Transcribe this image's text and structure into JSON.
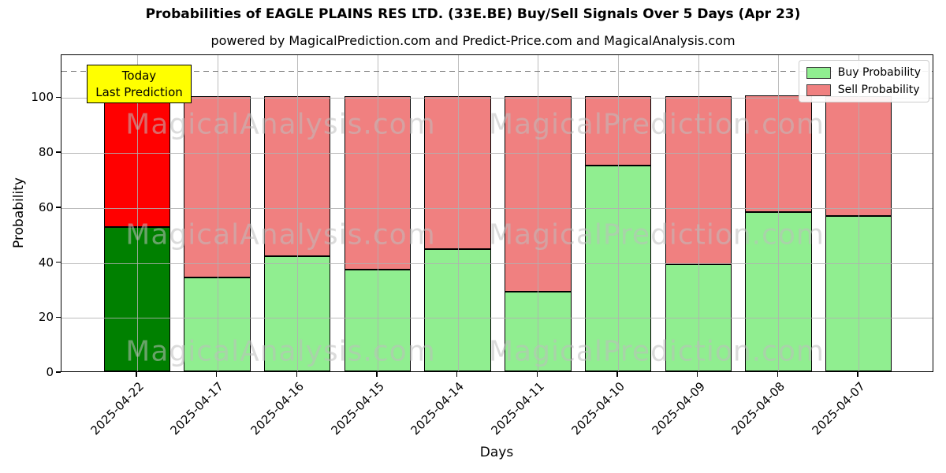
{
  "title": "Probabilities of EAGLE PLAINS RES LTD. (33E.BE) Buy/Sell Signals Over 5 Days (Apr 23)",
  "subtitle": "powered by MagicalPrediction.com and Predict-Price.com and MagicalAnalysis.com",
  "annotation": {
    "line1": "Today",
    "line2": "Last Prediction",
    "bg_color": "#ffff00"
  },
  "watermarks": {
    "left_text": "MagicalAnalysis.com",
    "right_text": "MagicalPrediction.com"
  },
  "legend": [
    {
      "label": "Buy Probability",
      "color": "#90ee90"
    },
    {
      "label": "Sell Probability",
      "color": "#f08080"
    }
  ],
  "chart_data": {
    "type": "bar",
    "stacked": true,
    "title": "Probabilities of EAGLE PLAINS RES LTD. (33E.BE) Buy/Sell Signals Over 5 Days (Apr 23)",
    "xlabel": "Days",
    "ylabel": "Probability",
    "categories": [
      "2025-04-22",
      "2025-04-17",
      "2025-04-16",
      "2025-04-15",
      "2025-04-14",
      "2025-04-11",
      "2025-04-10",
      "2025-04-09",
      "2025-04-08",
      "2025-04-07"
    ],
    "series": [
      {
        "name": "Buy Probability",
        "values": [
          52.5,
          34,
          42,
          37,
          44.5,
          29,
          75,
          39,
          58,
          56.5
        ],
        "colors": [
          "#008000",
          "#90ee90",
          "#90ee90",
          "#90ee90",
          "#90ee90",
          "#90ee90",
          "#90ee90",
          "#90ee90",
          "#90ee90",
          "#90ee90"
        ]
      },
      {
        "name": "Sell Probability",
        "values": [
          47.5,
          66,
          58,
          63,
          55.5,
          71,
          25,
          61,
          42.5,
          43.5
        ],
        "colors": [
          "#ff0000",
          "#f08080",
          "#f08080",
          "#f08080",
          "#f08080",
          "#f08080",
          "#f08080",
          "#f08080",
          "#f08080",
          "#f08080"
        ]
      }
    ],
    "ylim": [
      0,
      115.6
    ],
    "yticks": [
      0,
      20,
      40,
      60,
      80,
      100
    ],
    "dashed_line_y": 110,
    "grid": true,
    "legend_position": "upper right",
    "highlighted_bar": {
      "index": 0,
      "annotation": "Today Last Prediction"
    }
  }
}
